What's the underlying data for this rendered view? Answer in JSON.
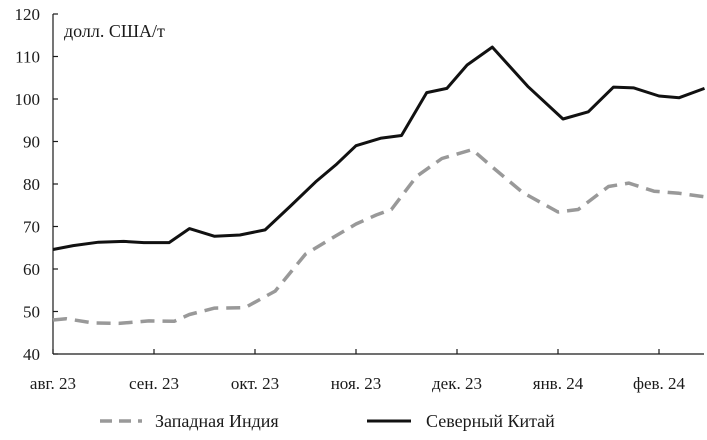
{
  "chart_data": {
    "type": "line",
    "unit_label": "долл. США/т",
    "ylim": [
      40,
      120
    ],
    "y_ticks": [
      40,
      50,
      60,
      70,
      80,
      90,
      100,
      110,
      120
    ],
    "x_categories": [
      "авг. 23",
      "сен. 23",
      "окт. 23",
      "ноя. 23",
      "дек. 23",
      "янв. 24",
      "фев. 24"
    ],
    "x_range": [
      0,
      6.45
    ],
    "grid": false,
    "legend_position": "bottom",
    "series": [
      {
        "name": "Западная Индия",
        "color": "#999999",
        "style": "dashed",
        "points": [
          [
            0.0,
            48.0
          ],
          [
            0.13,
            48.3
          ],
          [
            0.4,
            47.3
          ],
          [
            0.65,
            47.2
          ],
          [
            0.95,
            47.8
          ],
          [
            1.2,
            47.7
          ],
          [
            1.35,
            49.3
          ],
          [
            1.6,
            50.8
          ],
          [
            1.9,
            50.9
          ],
          [
            2.2,
            54.8
          ],
          [
            2.5,
            63.5
          ],
          [
            2.8,
            67.8
          ],
          [
            3.0,
            70.6
          ],
          [
            3.2,
            72.7
          ],
          [
            3.35,
            74.0
          ],
          [
            3.6,
            81.8
          ],
          [
            3.85,
            86.0
          ],
          [
            4.15,
            88.1
          ],
          [
            4.35,
            84.0
          ],
          [
            4.65,
            78.0
          ],
          [
            5.0,
            73.4
          ],
          [
            5.2,
            74.0
          ],
          [
            5.5,
            79.4
          ],
          [
            5.7,
            80.2
          ],
          [
            5.95,
            78.3
          ],
          [
            6.2,
            77.8
          ],
          [
            6.45,
            77.0
          ]
        ]
      },
      {
        "name": "Северный Китай",
        "color": "#111111",
        "style": "solid",
        "points": [
          [
            0.0,
            64.6
          ],
          [
            0.2,
            65.5
          ],
          [
            0.45,
            66.3
          ],
          [
            0.7,
            66.5
          ],
          [
            0.9,
            66.2
          ],
          [
            1.15,
            66.2
          ],
          [
            1.35,
            69.5
          ],
          [
            1.6,
            67.7
          ],
          [
            1.85,
            68.0
          ],
          [
            2.1,
            69.2
          ],
          [
            2.35,
            74.8
          ],
          [
            2.6,
            80.5
          ],
          [
            2.8,
            84.5
          ],
          [
            3.0,
            89.0
          ],
          [
            3.25,
            90.8
          ],
          [
            3.45,
            91.4
          ],
          [
            3.7,
            101.5
          ],
          [
            3.9,
            102.5
          ],
          [
            4.1,
            108.0
          ],
          [
            4.35,
            112.2
          ],
          [
            4.7,
            103.0
          ],
          [
            5.05,
            95.3
          ],
          [
            5.3,
            97.0
          ],
          [
            5.55,
            102.8
          ],
          [
            5.75,
            102.6
          ],
          [
            6.0,
            100.7
          ],
          [
            6.2,
            100.3
          ],
          [
            6.45,
            102.5
          ]
        ]
      }
    ]
  }
}
